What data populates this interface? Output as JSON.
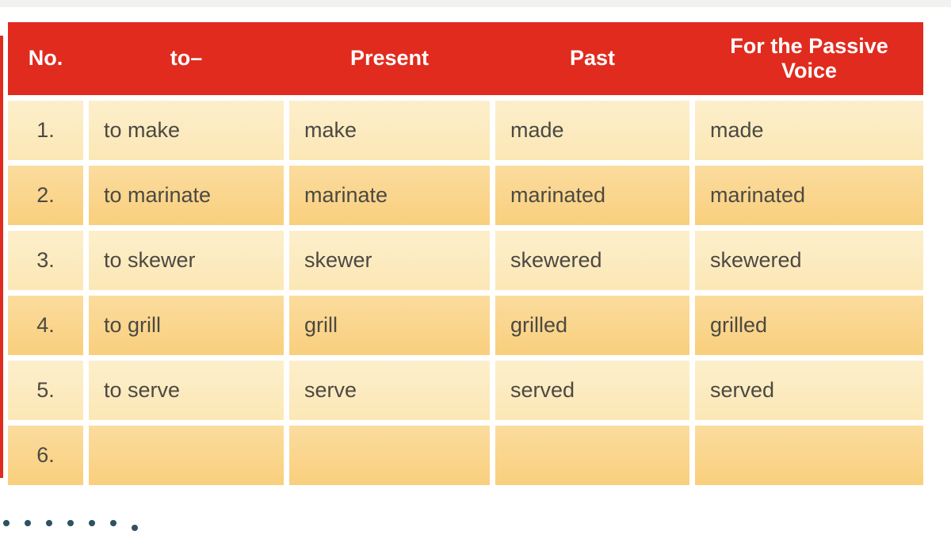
{
  "page": {
    "background_color": "#ffffff",
    "top_strip_color": "#f1f1ef"
  },
  "table": {
    "header_bg_color": "#e02b1e",
    "header_text_color": "#ffffff",
    "row_light_color": "#fdebc1",
    "row_dark_color": "#fad58e",
    "cell_text_color": "#4c4942",
    "columns": [
      "No.",
      "to–",
      "Present",
      "Past",
      "For the Passive Voice"
    ],
    "rows": [
      {
        "no": "1.",
        "to": "to make",
        "present": "make",
        "past": "made",
        "passive": "made"
      },
      {
        "no": "2.",
        "to": "to marinate",
        "present": "marinate",
        "past": "marinated",
        "passive": "marinated"
      },
      {
        "no": "3.",
        "to": "to skewer",
        "present": "skewer",
        "past": "skewered",
        "passive": "skewered"
      },
      {
        "no": "4.",
        "to": "to grill",
        "present": "grill",
        "past": "grilled",
        "passive": "grilled"
      },
      {
        "no": "5.",
        "to": "to serve",
        "present": "serve",
        "past": "served",
        "passive": "served"
      },
      {
        "no": "6.",
        "to": "",
        "present": "",
        "past": "",
        "passive": ""
      }
    ]
  },
  "decor": {
    "left_accent_color": "#e02b1e",
    "dots_color": "#2f5164",
    "dots_count": 7
  }
}
